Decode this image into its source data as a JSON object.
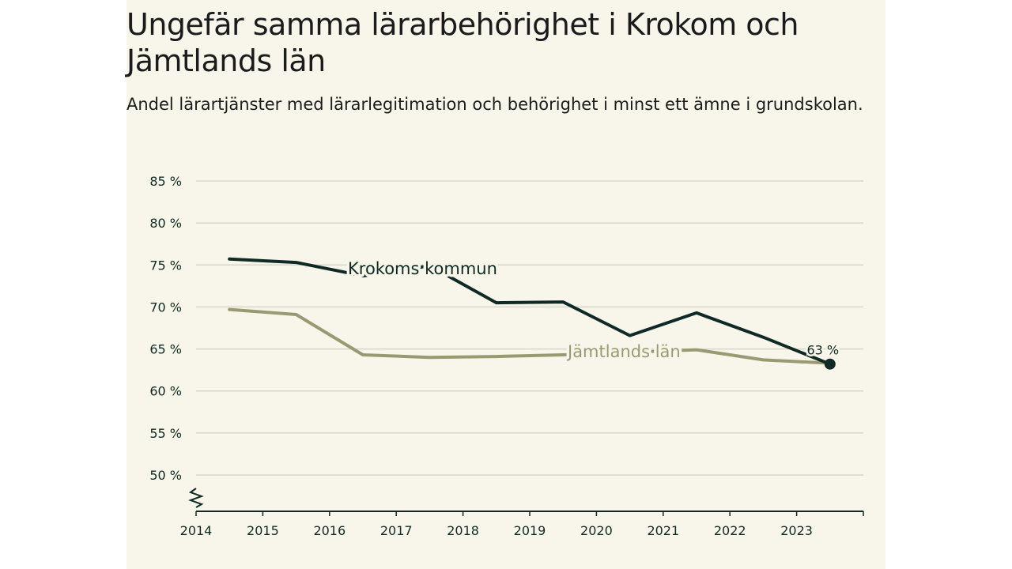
{
  "chart_data": {
    "type": "line",
    "title": "Ungefär samma lärarbehörighet i Krokom och Jämtlands län",
    "subtitle": "Andel lärartjänster med lärarlegitimation och behörighet i minst ett ämne i grundskolan.",
    "xlabel": "",
    "ylabel": "",
    "x_ticks": [
      "2014",
      "2015",
      "2016",
      "2017",
      "2018",
      "2019",
      "2020",
      "2021",
      "2022",
      "2023"
    ],
    "y_ticks": [
      "85 %",
      "80 %",
      "75 %",
      "70 %",
      "65 %",
      "60 %",
      "55 %",
      "50 %"
    ],
    "ylim": [
      45.5,
      85
    ],
    "xlim": [
      2014,
      2024
    ],
    "grid": true,
    "series": [
      {
        "name": "Krokoms kommun",
        "color": "#0f2a24",
        "x": [
          2014.5,
          2015.5,
          2016.5,
          2017.5,
          2018.5,
          2019.5,
          2020.5,
          2021.5,
          2022.5,
          2023.5
        ],
        "values": [
          75.7,
          75.3,
          73.7,
          74.9,
          70.5,
          70.6,
          66.6,
          69.3,
          66.4,
          63.2
        ]
      },
      {
        "name": "Jämtlands län",
        "color": "#9a9a72",
        "x": [
          2014.5,
          2015.5,
          2016.5,
          2017.5,
          2018.5,
          2019.5,
          2020.5,
          2021.5,
          2022.5,
          2023.5
        ],
        "values": [
          69.7,
          69.1,
          64.3,
          64.0,
          64.1,
          64.3,
          64.6,
          64.9,
          63.7,
          63.3
        ]
      }
    ],
    "end_label": "63 %"
  }
}
